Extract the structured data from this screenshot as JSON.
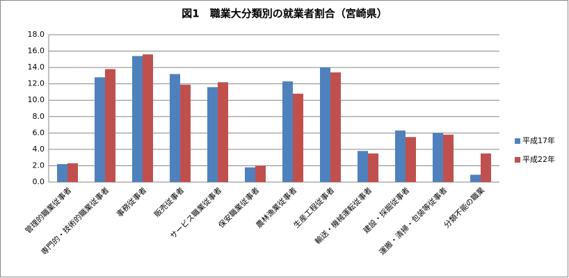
{
  "chart_data": {
    "type": "bar",
    "title": "図1　職業大分類別の就業者割合（宮崎県）",
    "categories": [
      "管理的職業従事者",
      "専門的・技術的職業従事者",
      "事務従事者",
      "販売従事者",
      "サービス職業従事者",
      "保安職業従事者",
      "農林漁業従事者",
      "生産工程従事者",
      "輸送・機械運転従事者",
      "建設・採掘従事者",
      "運搬・清掃・包装等従事者",
      "分類不能の職業"
    ],
    "series": [
      {
        "name": "平成17年",
        "color": "#4f81bd",
        "values": [
          2.2,
          12.8,
          15.4,
          13.2,
          11.6,
          1.8,
          12.3,
          14.0,
          3.8,
          6.3,
          6.0,
          0.9
        ]
      },
      {
        "name": "平成22年",
        "color": "#c0504d",
        "values": [
          2.3,
          13.8,
          15.6,
          11.9,
          12.2,
          2.0,
          10.8,
          13.4,
          3.5,
          5.5,
          5.8,
          3.5
        ]
      }
    ],
    "ylim": [
      0,
      18
    ],
    "yticks": [
      {
        "value": 0,
        "label": "0.0"
      },
      {
        "value": 2,
        "label": "2.0"
      },
      {
        "value": 4,
        "label": "4.0"
      },
      {
        "value": 6,
        "label": "6.0"
      },
      {
        "value": 8,
        "label": "8.0"
      },
      {
        "value": 10,
        "label": "10.0"
      },
      {
        "value": 12,
        "label": "12.0"
      },
      {
        "value": 14,
        "label": "14.0"
      },
      {
        "value": 16,
        "label": "16.0"
      },
      {
        "value": 18,
        "label": "18.0"
      }
    ],
    "grid": true,
    "legend": "right"
  }
}
